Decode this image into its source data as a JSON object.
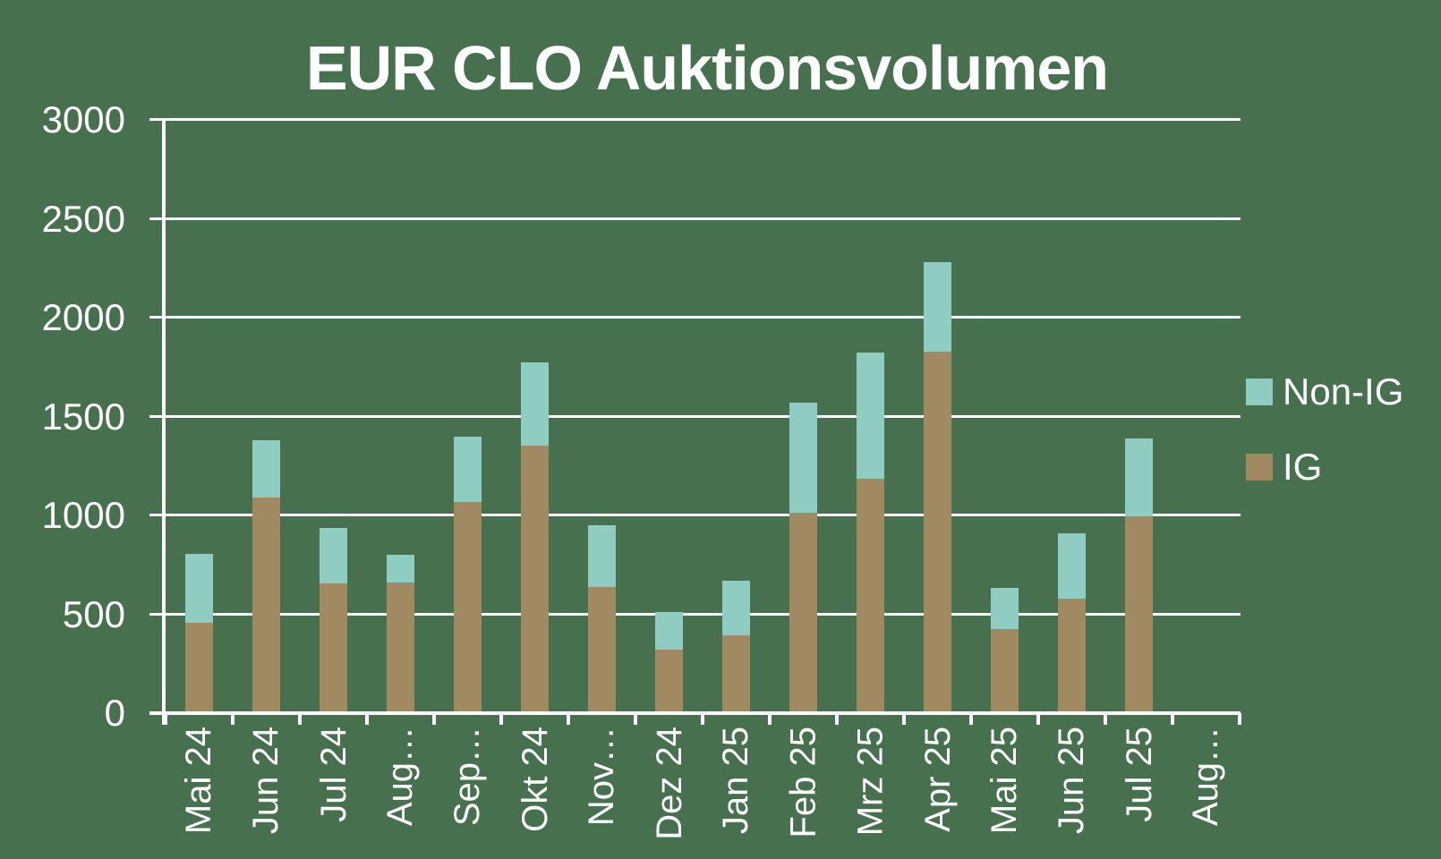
{
  "colors": {
    "background": "#47704E",
    "axis": "#FFFFFF",
    "text": "#FFFFFF",
    "non_ig": "#8FCDC2",
    "ig": "#A18A61"
  },
  "chart_data": {
    "type": "bar",
    "stacked": true,
    "title": "EUR CLO Auktionsvolumen",
    "categories": [
      "Mai 24",
      "Jun 24",
      "Jul 24",
      "Aug…",
      "Sep…",
      "Okt 24",
      "Nov…",
      "Dez 24",
      "Jan 25",
      "Feb 25",
      "Mrz 25",
      "Apr 25",
      "Mai 25",
      "Jun 25",
      "Jul 25",
      "Aug…"
    ],
    "series": [
      {
        "name": "IG",
        "color": "#A18A61",
        "values": [
          455,
          1090,
          655,
          660,
          1070,
          1355,
          640,
          320,
          395,
          1015,
          1185,
          1830,
          425,
          580,
          995,
          0
        ]
      },
      {
        "name": "Non-IG",
        "color": "#8FCDC2",
        "values": [
          350,
          290,
          280,
          140,
          330,
          420,
          310,
          190,
          275,
          555,
          640,
          450,
          210,
          330,
          395,
          0
        ]
      }
    ],
    "totals": [
      805,
      1380,
      935,
      800,
      1400,
      1775,
      950,
      510,
      670,
      1570,
      1825,
      2280,
      635,
      910,
      1390,
      0
    ],
    "xlabel": "",
    "ylabel": "",
    "ylim": [
      0,
      3000
    ],
    "yticks": [
      0,
      500,
      1000,
      1500,
      2000,
      2500,
      3000
    ],
    "grid": true,
    "legend": {
      "position": "right",
      "items": [
        {
          "label": "Non-IG",
          "color": "#8FCDC2"
        },
        {
          "label": "IG",
          "color": "#A18A61"
        }
      ]
    }
  }
}
